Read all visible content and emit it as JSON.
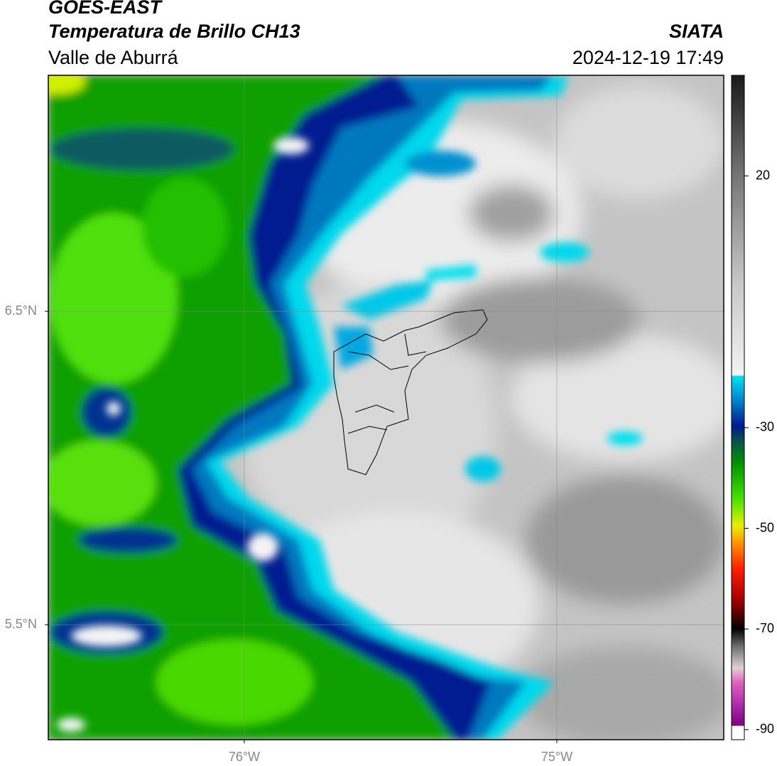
{
  "header": {
    "title": "GOES-EAST",
    "subtitle": "Temperatura de Brillo CH13",
    "region": "Valle de Aburrá",
    "source": "SIATA",
    "datetime": "2024-12-19 17:49"
  },
  "map": {
    "lon_range": [
      -76.627,
      -74.466
    ],
    "lat_range": [
      5.133,
      7.253
    ],
    "xticks": [
      {
        "value": -76,
        "label": "76°W"
      },
      {
        "value": -75,
        "label": "75°W"
      }
    ],
    "yticks": [
      {
        "value": 6.5,
        "label": "6.5°N"
      },
      {
        "value": 5.5,
        "label": "5.5°N"
      }
    ],
    "grid": true
  },
  "colorbar": {
    "range": [
      -92,
      40
    ],
    "ticks": [
      20,
      -30,
      -50,
      -70,
      -90
    ]
  }
}
